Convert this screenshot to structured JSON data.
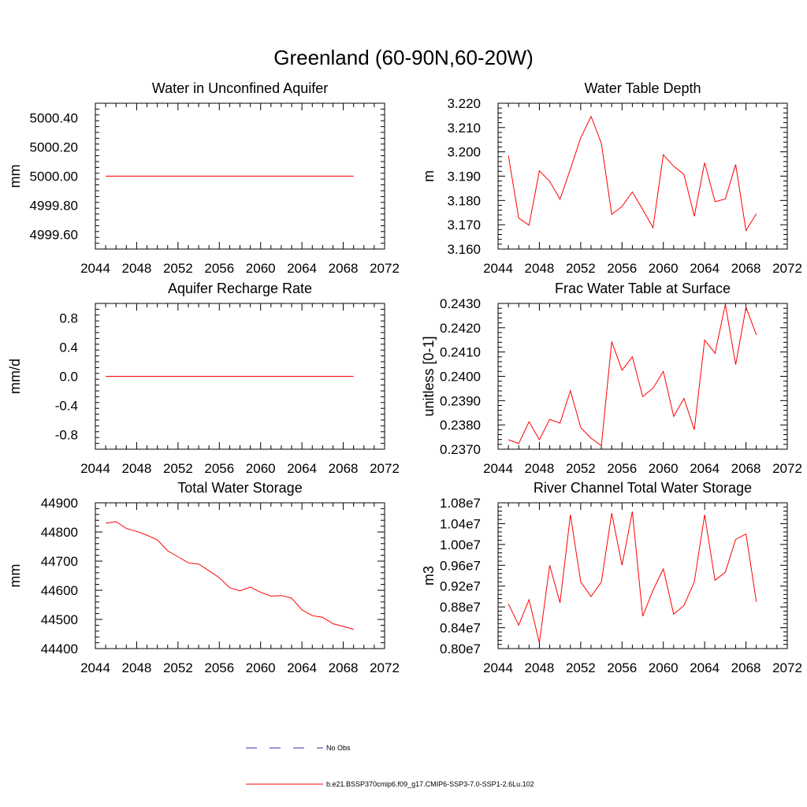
{
  "figure": {
    "title": "Greenland (60-90N,60-20W)"
  },
  "legend": {
    "entries": [
      {
        "label": "No Obs",
        "color": "#3333aa",
        "dash": true
      },
      {
        "label": "b.e21.BSSP370cmip6.f09_g17.CMIP6-SSP3-7.0-SSP1-2.6Lu.102",
        "color": "#ff0000",
        "dash": false
      }
    ]
  },
  "chart_data": [
    {
      "type": "line",
      "title": "Water in Unconfined Aquifer",
      "xlabel": "",
      "ylabel": "mm",
      "xlim": [
        2044,
        2072
      ],
      "ylim": [
        4999.5,
        5000.5
      ],
      "xticks": [
        2044,
        2048,
        2052,
        2056,
        2060,
        2064,
        2068,
        2072
      ],
      "yticks": [
        4999.6,
        4999.8,
        5000.0,
        5000.2,
        5000.4
      ],
      "ytick_labels": [
        "4999.60",
        "4999.80",
        "5000.00",
        "5000.20",
        "5000.40"
      ],
      "series": [
        {
          "color": "#ff0000",
          "x": [
            2045,
            2069
          ],
          "y": [
            5000.0,
            5000.0
          ]
        }
      ]
    },
    {
      "type": "line",
      "title": "Water Table Depth",
      "xlabel": "",
      "ylabel": "m",
      "xlim": [
        2044,
        2072
      ],
      "ylim": [
        3.16,
        3.22
      ],
      "xticks": [
        2044,
        2048,
        2052,
        2056,
        2060,
        2064,
        2068,
        2072
      ],
      "yticks": [
        3.16,
        3.17,
        3.18,
        3.19,
        3.2,
        3.21,
        3.22
      ],
      "ytick_labels": [
        "3.160",
        "3.170",
        "3.180",
        "3.190",
        "3.200",
        "3.210",
        "3.220"
      ],
      "series": [
        {
          "color": "#ff0000",
          "x": [
            2045,
            2046,
            2047,
            2048,
            2049,
            2050,
            2051,
            2052,
            2053,
            2054,
            2055,
            2056,
            2057,
            2058,
            2059,
            2060,
            2061,
            2062,
            2063,
            2064,
            2065,
            2066,
            2067,
            2068,
            2069
          ],
          "y": [
            3.1985,
            3.1727,
            3.1698,
            3.1922,
            3.1879,
            3.1805,
            3.1929,
            3.2058,
            3.2146,
            3.2035,
            3.1743,
            3.1775,
            3.1835,
            3.1763,
            3.1688,
            3.1988,
            3.1941,
            3.1907,
            3.1735,
            3.1955,
            3.1795,
            3.1806,
            3.1948,
            3.1676,
            3.1745
          ]
        }
      ]
    },
    {
      "type": "line",
      "title": "Aquifer Recharge Rate",
      "xlabel": "",
      "ylabel": "mm/d",
      "xlim": [
        2044,
        2072
      ],
      "ylim": [
        -1.0,
        1.0
      ],
      "xticks": [
        2044,
        2048,
        2052,
        2056,
        2060,
        2064,
        2068,
        2072
      ],
      "yticks": [
        -0.8,
        -0.4,
        0.0,
        0.4,
        0.8
      ],
      "ytick_labels": [
        "-0.8",
        "-0.4",
        "0.0",
        "0.4",
        "0.8"
      ],
      "series": [
        {
          "color": "#ff0000",
          "x": [
            2045,
            2069
          ],
          "y": [
            0.0,
            0.0
          ]
        }
      ]
    },
    {
      "type": "line",
      "title": "Frac Water Table at Surface",
      "xlabel": "",
      "ylabel": "unitless [0-1]",
      "xlim": [
        2044,
        2072
      ],
      "ylim": [
        0.237,
        0.243
      ],
      "xticks": [
        2044,
        2048,
        2052,
        2056,
        2060,
        2064,
        2068,
        2072
      ],
      "yticks": [
        0.237,
        0.238,
        0.239,
        0.24,
        0.241,
        0.242,
        0.243
      ],
      "ytick_labels": [
        "0.2370",
        "0.2380",
        "0.2390",
        "0.2400",
        "0.2410",
        "0.2420",
        "0.2430"
      ],
      "series": [
        {
          "color": "#ff0000",
          "x": [
            2045,
            2046,
            2047,
            2048,
            2049,
            2050,
            2051,
            2052,
            2053,
            2054,
            2055,
            2056,
            2057,
            2058,
            2059,
            2060,
            2061,
            2062,
            2063,
            2064,
            2065,
            2066,
            2067,
            2068,
            2069
          ],
          "y": [
            0.23739,
            0.23723,
            0.23813,
            0.23739,
            0.23823,
            0.23807,
            0.23941,
            0.23789,
            0.23745,
            0.23715,
            0.24143,
            0.24025,
            0.2408,
            0.23917,
            0.23951,
            0.2402,
            0.23835,
            0.23909,
            0.2378,
            0.24149,
            0.24095,
            0.24296,
            0.24048,
            0.24284,
            0.24171
          ]
        }
      ]
    },
    {
      "type": "line",
      "title": "Total Water Storage",
      "xlabel": "",
      "ylabel": "mm",
      "xlim": [
        2044,
        2072
      ],
      "ylim": [
        44400,
        44900
      ],
      "xticks": [
        2044,
        2048,
        2052,
        2056,
        2060,
        2064,
        2068,
        2072
      ],
      "yticks": [
        44400,
        44500,
        44600,
        44700,
        44800,
        44900
      ],
      "ytick_labels": [
        "44400",
        "44500",
        "44600",
        "44700",
        "44800",
        "44900"
      ],
      "series": [
        {
          "color": "#ff0000",
          "x": [
            2045,
            2046,
            2047,
            2048,
            2049,
            2050,
            2051,
            2052,
            2053,
            2054,
            2055,
            2056,
            2057,
            2058,
            2059,
            2060,
            2061,
            2062,
            2063,
            2064,
            2065,
            2066,
            2067,
            2068,
            2069
          ],
          "y": [
            44830,
            44835,
            44812,
            44802,
            44789,
            44773,
            44735,
            44715,
            44694,
            44690,
            44667,
            44643,
            44609,
            44598,
            44611,
            44593,
            44580,
            44582,
            44573,
            44533,
            44513,
            44507,
            44485,
            44476,
            44466
          ]
        }
      ]
    },
    {
      "type": "line",
      "title": "River Channel Total Water Storage",
      "xlabel": "",
      "ylabel": "m3",
      "xlim": [
        2044,
        2072
      ],
      "ylim": [
        8000000,
        10800000
      ],
      "xticks": [
        2044,
        2048,
        2052,
        2056,
        2060,
        2064,
        2068,
        2072
      ],
      "yticks": [
        8000000,
        8400000,
        8800000,
        9200000,
        9600000,
        10000000,
        10400000,
        10800000
      ],
      "ytick_labels": [
        "0.80e7",
        "0.84e7",
        "0.88e7",
        "0.92e7",
        "0.96e7",
        "1.00e7",
        "1.04e7",
        "1.08e7"
      ],
      "series": [
        {
          "color": "#ff0000",
          "x": [
            2045,
            2046,
            2047,
            2048,
            2049,
            2050,
            2051,
            2052,
            2053,
            2054,
            2055,
            2056,
            2057,
            2058,
            2059,
            2060,
            2061,
            2062,
            2063,
            2064,
            2065,
            2066,
            2067,
            2068,
            2069
          ],
          "y": [
            8860000,
            8450000,
            8940000,
            8110000,
            9600000,
            8880000,
            10570000,
            9280000,
            9000000,
            9280000,
            10600000,
            9600000,
            10630000,
            8620000,
            9120000,
            9530000,
            8660000,
            8830000,
            9280000,
            10570000,
            9310000,
            9470000,
            10100000,
            10200000,
            8900000
          ]
        }
      ]
    }
  ]
}
